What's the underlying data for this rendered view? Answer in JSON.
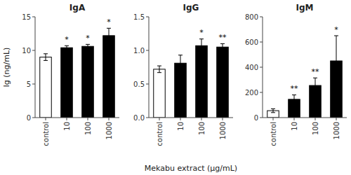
{
  "chart_data": [
    {
      "type": "bar",
      "title": "IgA",
      "ylabel": "Ig (ng/mL)",
      "categories": [
        "control",
        "10",
        "100",
        "1000"
      ],
      "values": [
        9.0,
        10.4,
        10.6,
        12.2
      ],
      "errors": [
        0.5,
        0.3,
        0.3,
        1.1
      ],
      "colors": [
        "white",
        "black",
        "black",
        "black"
      ],
      "annotations": [
        null,
        "*",
        "*",
        "*"
      ],
      "ylim": [
        0,
        15
      ],
      "yticks": [
        0,
        5,
        10,
        15
      ]
    },
    {
      "type": "bar",
      "title": "IgG",
      "xlabel": "Mekabu extract (μg/mL)",
      "categories": [
        "control",
        "10",
        "100",
        "1000"
      ],
      "values": [
        0.72,
        0.81,
        1.07,
        1.05
      ],
      "errors": [
        0.05,
        0.12,
        0.1,
        0.05
      ],
      "colors": [
        "white",
        "black",
        "black",
        "black"
      ],
      "annotations": [
        null,
        null,
        "*",
        "**"
      ],
      "ylim": [
        0,
        1.5
      ],
      "yticks": [
        {
          "value": 0.0,
          "label": "0.0"
        },
        0.5,
        {
          "value": 1.0,
          "label": "1.0"
        },
        1.5
      ]
    },
    {
      "type": "bar",
      "title": "IgM",
      "categories": [
        "control",
        "10",
        "100",
        "1000"
      ],
      "values": [
        55,
        145,
        255,
        450
      ],
      "errors": [
        15,
        35,
        60,
        200
      ],
      "colors": [
        "white",
        "black",
        "black",
        "black"
      ],
      "annotations": [
        null,
        "**",
        "**",
        "*"
      ],
      "ylim": [
        0,
        800
      ],
      "yticks": [
        0,
        200,
        400,
        600,
        800
      ]
    }
  ]
}
